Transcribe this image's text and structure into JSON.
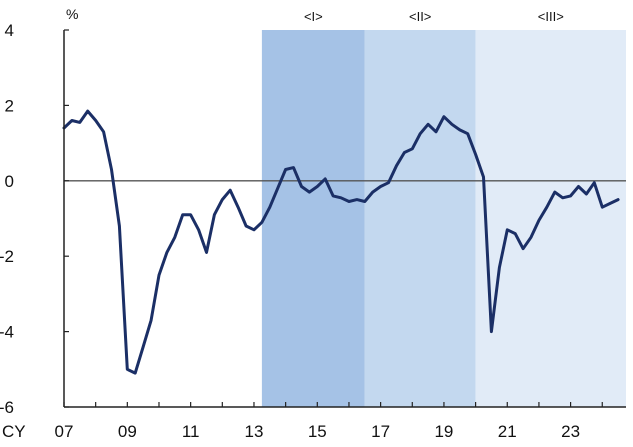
{
  "chart_data": {
    "type": "line",
    "unit_label": "%",
    "x_prefix": "CY",
    "x_tick_labels": [
      "07",
      "09",
      "11",
      "13",
      "15",
      "17",
      "19",
      "21",
      "23"
    ],
    "x_tick_years": [
      2007,
      2009,
      2011,
      2013,
      2015,
      2017,
      2019,
      2021,
      2023
    ],
    "xlim": [
      2007.0,
      2024.75
    ],
    "ylim": [
      -6,
      4
    ],
    "y_ticks": [
      4,
      2,
      0,
      -2,
      -4,
      -6
    ],
    "zero_line": true,
    "grid": false,
    "legend": "none",
    "periods": [
      {
        "label": "<I>",
        "start": 2013.25,
        "end": 2016.5,
        "color": "#a5c2e6"
      },
      {
        "label": "<II>",
        "start": 2016.5,
        "end": 2020.0,
        "color": "#c3d8ef"
      },
      {
        "label": "<III>",
        "start": 2020.0,
        "end": 2024.75,
        "color": "#e1ebf7"
      }
    ],
    "series": [
      {
        "color": "#1b2f66",
        "x": [
          2007.0,
          2007.25,
          2007.5,
          2007.75,
          2008.0,
          2008.25,
          2008.5,
          2008.75,
          2009.0,
          2009.25,
          2009.5,
          2009.75,
          2010.0,
          2010.25,
          2010.5,
          2010.75,
          2011.0,
          2011.25,
          2011.5,
          2011.75,
          2012.0,
          2012.25,
          2012.5,
          2012.75,
          2013.0,
          2013.25,
          2013.5,
          2013.75,
          2014.0,
          2014.25,
          2014.5,
          2014.75,
          2015.0,
          2015.25,
          2015.5,
          2015.75,
          2016.0,
          2016.25,
          2016.5,
          2016.75,
          2017.0,
          2017.25,
          2017.5,
          2017.75,
          2018.0,
          2018.25,
          2018.5,
          2018.75,
          2019.0,
          2019.25,
          2019.5,
          2019.75,
          2020.0,
          2020.25,
          2020.5,
          2020.75,
          2021.0,
          2021.25,
          2021.5,
          2021.75,
          2022.0,
          2022.25,
          2022.5,
          2022.75,
          2023.0,
          2023.25,
          2023.5,
          2023.75,
          2024.0,
          2024.25,
          2024.5
        ],
        "values": [
          1.4,
          1.6,
          1.55,
          1.85,
          1.6,
          1.3,
          0.3,
          -1.2,
          -5.0,
          -5.1,
          -4.4,
          -3.7,
          -2.5,
          -1.9,
          -1.5,
          -0.9,
          -0.9,
          -1.3,
          -1.9,
          -0.9,
          -0.5,
          -0.25,
          -0.7,
          -1.2,
          -1.3,
          -1.1,
          -0.7,
          -0.2,
          0.3,
          0.35,
          -0.15,
          -0.3,
          -0.15,
          0.05,
          -0.4,
          -0.45,
          -0.55,
          -0.5,
          -0.55,
          -0.3,
          -0.15,
          -0.05,
          0.4,
          0.75,
          0.85,
          1.25,
          1.5,
          1.3,
          1.7,
          1.5,
          1.35,
          1.25,
          0.7,
          0.1,
          -4.0,
          -2.3,
          -1.3,
          -1.4,
          -1.8,
          -1.5,
          -1.05,
          -0.7,
          -0.3,
          -0.45,
          -0.4,
          -0.15,
          -0.35,
          -0.05,
          -0.7,
          -0.6,
          -0.5
        ]
      }
    ]
  }
}
